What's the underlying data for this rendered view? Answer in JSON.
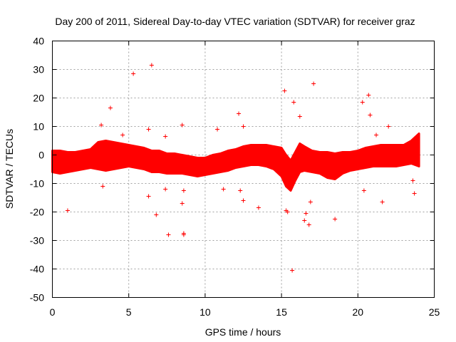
{
  "chart_data": {
    "type": "scatter",
    "title": "Day 200 of 2011, Sidereal Day-to-day VTEC variation (SDTVAR) for receiver graz",
    "xlabel": "GPS time / hours",
    "ylabel": "SDTVAR / TECUs",
    "xlim": [
      0,
      25
    ],
    "ylim": [
      -50,
      40
    ],
    "x_ticks": [
      0,
      5,
      10,
      15,
      20,
      25
    ],
    "y_ticks": [
      -50,
      -40,
      -30,
      -20,
      -10,
      0,
      10,
      20,
      30,
      40
    ],
    "x_tick_labels": [
      "0",
      "5",
      "10",
      "15",
      "20",
      "25"
    ],
    "y_tick_labels": [
      "-50",
      "-40",
      "-30",
      "-20",
      "-10",
      "0",
      "10",
      "20",
      "30",
      "40"
    ],
    "grid": true,
    "marker": "+",
    "color": "#ff0000",
    "series": [
      {
        "name": "SDTVAR",
        "band_x": [
          0.0,
          0.5,
          1.0,
          1.5,
          2.0,
          2.5,
          3.0,
          3.5,
          4.0,
          4.5,
          5.0,
          5.5,
          6.0,
          6.5,
          7.0,
          7.5,
          8.0,
          8.5,
          9.0,
          9.5,
          10.0,
          10.5,
          11.0,
          11.5,
          12.0,
          12.5,
          13.0,
          13.5,
          14.0,
          14.5,
          15.0,
          15.3,
          15.6,
          15.9,
          16.2,
          16.5,
          17.0,
          17.5,
          18.0,
          18.5,
          19.0,
          19.5,
          20.0,
          20.5,
          21.0,
          21.5,
          22.0,
          22.5,
          23.0,
          23.5,
          24.0
        ],
        "band_upper": [
          1.5,
          1.5,
          1.0,
          1.0,
          1.5,
          2.0,
          4.5,
          5.0,
          4.5,
          4.0,
          3.5,
          3.0,
          2.5,
          1.5,
          1.5,
          0.5,
          0.5,
          0.0,
          -0.5,
          -1.0,
          -1.0,
          0.0,
          0.5,
          1.5,
          2.0,
          3.0,
          3.5,
          3.5,
          3.5,
          3.0,
          2.5,
          0.0,
          -2.0,
          1.0,
          4.0,
          3.0,
          1.5,
          1.0,
          1.0,
          0.5,
          1.0,
          1.0,
          1.5,
          2.5,
          3.0,
          3.5,
          3.5,
          3.5,
          3.5,
          5.0,
          7.5
        ],
        "band_lower": [
          -6.0,
          -6.5,
          -6.0,
          -5.5,
          -5.0,
          -4.5,
          -5.0,
          -5.5,
          -5.0,
          -4.5,
          -4.0,
          -4.5,
          -5.0,
          -6.0,
          -6.0,
          -6.5,
          -6.5,
          -6.5,
          -7.0,
          -7.5,
          -7.0,
          -6.5,
          -6.0,
          -5.5,
          -4.5,
          -4.0,
          -3.5,
          -3.5,
          -4.0,
          -5.0,
          -7.5,
          -11.0,
          -12.5,
          -9.0,
          -6.0,
          -5.5,
          -6.0,
          -6.5,
          -8.0,
          -8.5,
          -6.5,
          -5.5,
          -5.0,
          -4.5,
          -4.0,
          -4.0,
          -4.0,
          -4.0,
          -3.5,
          -3.0,
          -4.0
        ],
        "outliers": [
          [
            1.0,
            -19.5
          ],
          [
            3.2,
            10.5
          ],
          [
            3.3,
            -11.0
          ],
          [
            3.8,
            16.5
          ],
          [
            4.6,
            7.0
          ],
          [
            5.3,
            28.5
          ],
          [
            6.3,
            9.0
          ],
          [
            6.3,
            -14.5
          ],
          [
            6.5,
            31.5
          ],
          [
            6.8,
            -21.0
          ],
          [
            7.4,
            6.5
          ],
          [
            7.4,
            -12.0
          ],
          [
            7.6,
            -28.0
          ],
          [
            8.5,
            10.5
          ],
          [
            8.5,
            -17.0
          ],
          [
            8.6,
            -28.0
          ],
          [
            8.6,
            -27.5
          ],
          [
            8.6,
            -12.5
          ],
          [
            10.8,
            9.0
          ],
          [
            11.2,
            -12.0
          ],
          [
            12.2,
            14.5
          ],
          [
            12.3,
            -12.5
          ],
          [
            12.5,
            10.0
          ],
          [
            12.5,
            -16.0
          ],
          [
            13.5,
            -18.5
          ],
          [
            15.2,
            22.5
          ],
          [
            15.3,
            -19.5
          ],
          [
            15.4,
            -20.0
          ],
          [
            15.7,
            -40.5
          ],
          [
            15.8,
            18.5
          ],
          [
            16.2,
            13.5
          ],
          [
            16.5,
            -23.0
          ],
          [
            16.6,
            -20.5
          ],
          [
            16.8,
            -24.5
          ],
          [
            16.9,
            -16.5
          ],
          [
            17.1,
            25.0
          ],
          [
            18.5,
            -22.5
          ],
          [
            20.3,
            18.5
          ],
          [
            20.4,
            -12.5
          ],
          [
            20.7,
            21.0
          ],
          [
            20.8,
            14.0
          ],
          [
            21.2,
            7.0
          ],
          [
            21.6,
            -16.5
          ],
          [
            22.0,
            10.0
          ],
          [
            23.6,
            -9.0
          ],
          [
            23.7,
            -13.5
          ]
        ]
      }
    ]
  }
}
